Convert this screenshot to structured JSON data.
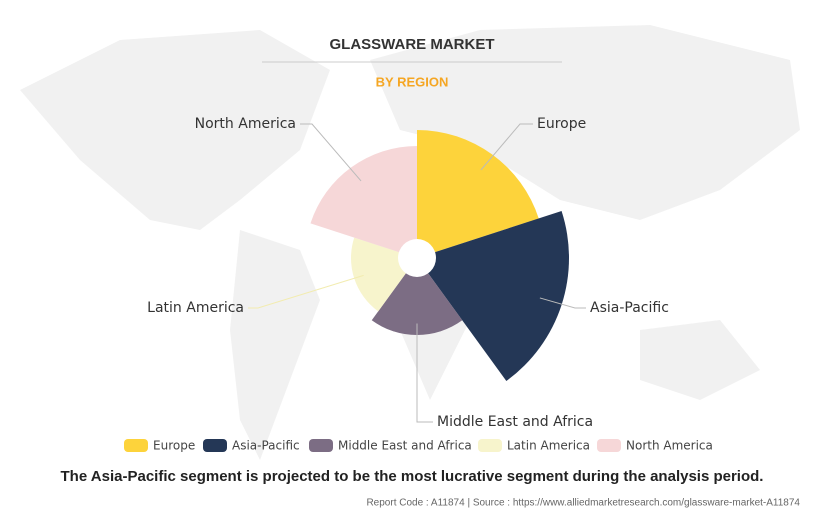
{
  "chart_data": {
    "type": "polar-area",
    "title": "GLASSWARE MARKET",
    "subtitle": "BY REGION",
    "categories": [
      "Europe",
      "Asia-Pacific",
      "Middle East and Africa",
      "Latin America",
      "North America"
    ],
    "values": [
      128,
      152,
      77,
      66,
      112
    ],
    "colors": [
      "#fdd33b",
      "#243756",
      "#7c6d84",
      "#f7f4cc",
      "#f6d7d8"
    ],
    "rlim": [
      0,
      160
    ],
    "legend": "bottom",
    "caption": "The Asia-Pacific segment is projected to be the most lucrative segment during the analysis period.",
    "source": "Report Code : A11874  |  Source : https://www.alliedmarketresearch.com/glassware-market-A11874"
  }
}
